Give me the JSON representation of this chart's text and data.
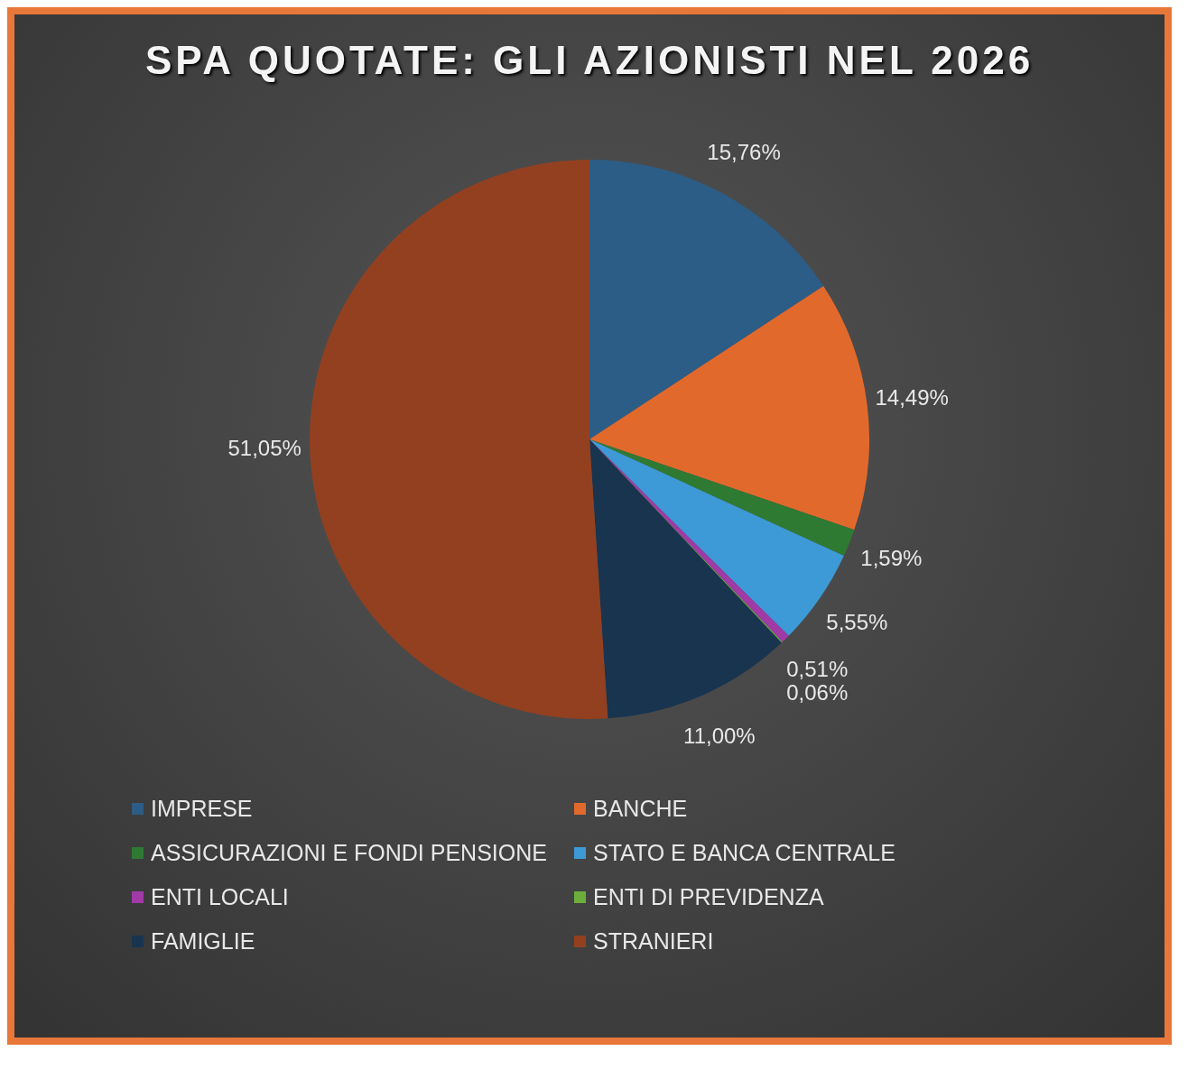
{
  "chart_data": {
    "type": "pie",
    "title": "SPA QUOTATE: GLI AZIONISTI NEL 2026",
    "categories": [
      "IMPRESE",
      "BANCHE",
      "ASSICURAZIONI E FONDI PENSIONE",
      "STATO E BANCA CENTRALE",
      "ENTI LOCALI",
      "ENTI DI PREVIDENZA",
      "FAMIGLIE",
      "STRANIERI"
    ],
    "values": [
      15.76,
      14.49,
      1.59,
      5.55,
      0.51,
      0.06,
      11.0,
      51.05
    ],
    "colors": [
      "#2c5d86",
      "#e2692c",
      "#2f7a33",
      "#3d9ad6",
      "#a03aa6",
      "#6bae3c",
      "#18344f",
      "#934020"
    ],
    "value_labels": [
      "15,76%",
      "14,49%",
      "1,59%",
      "5,55%",
      "0,51%",
      "0,06%",
      "11,00%",
      "51,05%"
    ],
    "legend": "bottom"
  }
}
